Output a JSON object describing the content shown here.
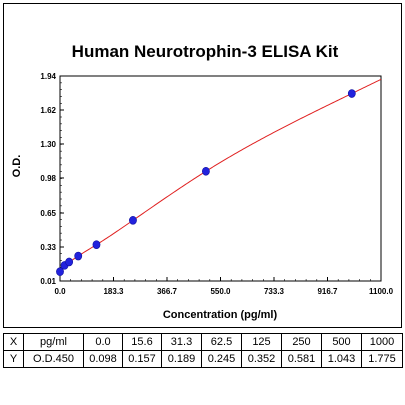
{
  "chart_data": {
    "type": "scatter",
    "title": "Human Neurotrophin-3 ELISA Kit",
    "xlabel": "Concentration (pg/ml)",
    "ylabel": "O.D.",
    "xlim": [
      0,
      1100
    ],
    "ylim": [
      0.01,
      1.94
    ],
    "x_ticks": [
      "0.0",
      "183.3",
      "366.7",
      "550.0",
      "733.3",
      "916.7",
      "1100.0"
    ],
    "y_ticks": [
      "0.01",
      "0.33",
      "0.65",
      "0.98",
      "1.30",
      "1.62",
      "1.94"
    ],
    "grid": false,
    "legend": "none",
    "series": [
      {
        "points": [
          {
            "x": 0,
            "y": 0.098
          },
          {
            "x": 15.6,
            "y": 0.157
          },
          {
            "x": 31.3,
            "y": 0.189
          },
          {
            "x": 62.5,
            "y": 0.245
          },
          {
            "x": 125,
            "y": 0.352
          },
          {
            "x": 250,
            "y": 0.581
          },
          {
            "x": 500,
            "y": 1.043
          },
          {
            "x": 1000,
            "y": 1.775
          }
        ],
        "marker_color": "#2222dd",
        "fit_line_color": "#e02020"
      }
    ]
  },
  "table": {
    "rows": [
      [
        "X",
        "pg/ml",
        "0.0",
        "15.6",
        "31.3",
        "62.5",
        "125",
        "250",
        "500",
        "1000"
      ],
      [
        "Y",
        "O.D.450",
        "0.098",
        "0.157",
        "0.189",
        "0.245",
        "0.352",
        "0.581",
        "1.043",
        "1.775"
      ]
    ]
  }
}
